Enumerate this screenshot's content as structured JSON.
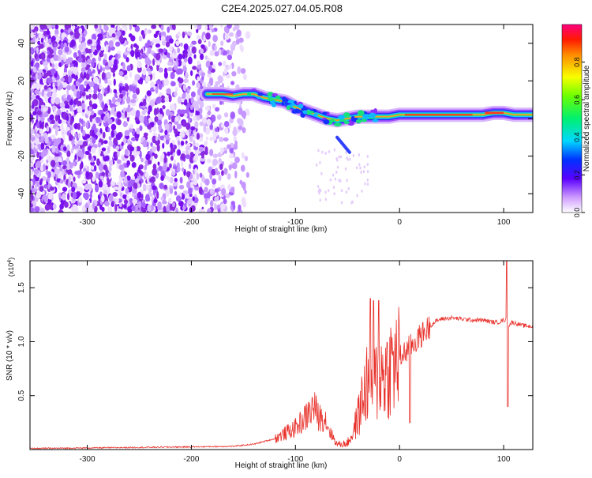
{
  "figure": {
    "title": "C2E4.2025.027.04.05.R08"
  },
  "chart_data": [
    {
      "type": "heatmap",
      "title": "",
      "xlabel": "Height of straight line (km)",
      "ylabel": "Frequency (Hz)",
      "xlim": [
        -355,
        128
      ],
      "ylim": [
        -50,
        50
      ],
      "xticks": [
        -300,
        -200,
        -100,
        0,
        100
      ],
      "yticks": [
        -40,
        -20,
        0,
        20,
        40
      ],
      "xtick_labels": [
        "-300",
        "-200",
        "-100",
        "0",
        "100"
      ],
      "ytick_labels": [
        "-40",
        "-20",
        "0",
        "20",
        "40"
      ],
      "colorbar": {
        "label": "Normalized spectral amplitude",
        "range": [
          0,
          1
        ],
        "ticks": [
          0.0,
          0.2,
          0.4,
          0.6,
          0.8
        ],
        "tick_labels": [
          "0.0",
          "0.2",
          "0.4",
          "0.6",
          "0.8"
        ]
      },
      "ridge": {
        "x": [
          -185,
          -170,
          -160,
          -150,
          -140,
          -130,
          -120,
          -110,
          -100,
          -90,
          -80,
          -70,
          -60,
          -50,
          -40,
          -30,
          -20,
          -10,
          0,
          10,
          20,
          40,
          60,
          80,
          90,
          100,
          110,
          128
        ],
        "y": [
          13,
          13,
          12,
          13,
          13,
          11,
          10,
          9,
          6,
          4,
          2,
          0,
          -1,
          0,
          1,
          1,
          1,
          1,
          2,
          2,
          2,
          2,
          2,
          2,
          3,
          3,
          2,
          2
        ]
      }
    },
    {
      "type": "line",
      "title": "",
      "xlabel": "Height of straight line (km)",
      "ylabel": "SNR (10 * v/v)",
      "y_multiplier_label": "(x10",
      "y_multiplier_exp": "4",
      "xlim": [
        -355,
        128
      ],
      "ylim": [
        0,
        1.75
      ],
      "xticks": [
        -300,
        -200,
        -100,
        0,
        100
      ],
      "yticks": [
        0.5,
        1.0,
        1.5
      ],
      "xtick_labels": [
        "-300",
        "-200",
        "-100",
        "0",
        "100"
      ],
      "ytick_labels": [
        "0.5",
        "1.0",
        "1.5"
      ],
      "series": [
        {
          "color": "#e8312b",
          "x": [
            -355,
            -300,
            -250,
            -200,
            -160,
            -140,
            -120,
            -110,
            -100,
            -92,
            -86,
            -82,
            -78,
            -72,
            -66,
            -60,
            -55,
            -50,
            -45,
            -40,
            -36,
            -32,
            -28,
            -26,
            -24,
            -20,
            -16,
            -12,
            -8,
            -4,
            0,
            5,
            10,
            15,
            20,
            25,
            30,
            35,
            40,
            50,
            60,
            70,
            80,
            90,
            95,
            100,
            103,
            105,
            108,
            112,
            118,
            128
          ],
          "y": [
            0.01,
            0.015,
            0.02,
            0.025,
            0.03,
            0.05,
            0.1,
            0.15,
            0.2,
            0.28,
            0.35,
            0.4,
            0.3,
            0.3,
            0.15,
            0.05,
            0.05,
            0.06,
            0.15,
            0.3,
            0.45,
            0.6,
            0.7,
            0.65,
            0.6,
            0.68,
            0.7,
            0.72,
            0.78,
            0.8,
            0.85,
            0.9,
            0.95,
            1.0,
            1.05,
            1.1,
            1.15,
            1.19,
            1.21,
            1.22,
            1.21,
            1.2,
            1.2,
            1.18,
            1.18,
            1.2,
            1.2,
            1.15,
            1.18,
            1.17,
            1.15,
            1.14
          ]
        }
      ]
    }
  ]
}
